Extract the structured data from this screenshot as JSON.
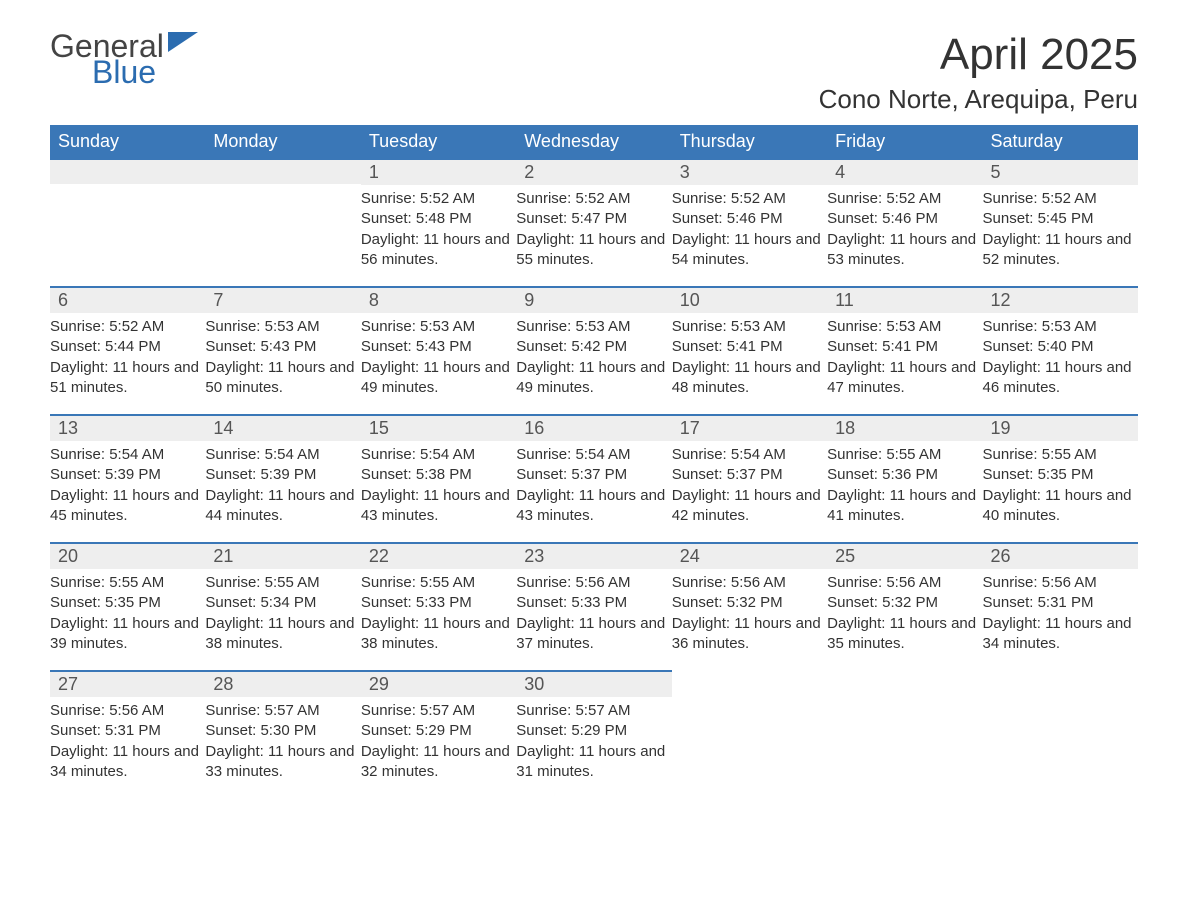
{
  "logo": {
    "text_general": "General",
    "text_blue": "Blue",
    "accent_color": "#2b6cb0"
  },
  "title": "April 2025",
  "location": "Cono Norte, Arequipa, Peru",
  "colors": {
    "header_bg": "#3a77b7",
    "header_text": "#ffffff",
    "daynum_bg": "#eeeeee",
    "daynum_border": "#3a77b7",
    "body_text": "#333333",
    "page_bg": "#ffffff"
  },
  "weekdays": [
    "Sunday",
    "Monday",
    "Tuesday",
    "Wednesday",
    "Thursday",
    "Friday",
    "Saturday"
  ],
  "weeks": [
    [
      null,
      null,
      {
        "n": "1",
        "sunrise": "5:52 AM",
        "sunset": "5:48 PM",
        "daylight": "11 hours and 56 minutes."
      },
      {
        "n": "2",
        "sunrise": "5:52 AM",
        "sunset": "5:47 PM",
        "daylight": "11 hours and 55 minutes."
      },
      {
        "n": "3",
        "sunrise": "5:52 AM",
        "sunset": "5:46 PM",
        "daylight": "11 hours and 54 minutes."
      },
      {
        "n": "4",
        "sunrise": "5:52 AM",
        "sunset": "5:46 PM",
        "daylight": "11 hours and 53 minutes."
      },
      {
        "n": "5",
        "sunrise": "5:52 AM",
        "sunset": "5:45 PM",
        "daylight": "11 hours and 52 minutes."
      }
    ],
    [
      {
        "n": "6",
        "sunrise": "5:52 AM",
        "sunset": "5:44 PM",
        "daylight": "11 hours and 51 minutes."
      },
      {
        "n": "7",
        "sunrise": "5:53 AM",
        "sunset": "5:43 PM",
        "daylight": "11 hours and 50 minutes."
      },
      {
        "n": "8",
        "sunrise": "5:53 AM",
        "sunset": "5:43 PM",
        "daylight": "11 hours and 49 minutes."
      },
      {
        "n": "9",
        "sunrise": "5:53 AM",
        "sunset": "5:42 PM",
        "daylight": "11 hours and 49 minutes."
      },
      {
        "n": "10",
        "sunrise": "5:53 AM",
        "sunset": "5:41 PM",
        "daylight": "11 hours and 48 minutes."
      },
      {
        "n": "11",
        "sunrise": "5:53 AM",
        "sunset": "5:41 PM",
        "daylight": "11 hours and 47 minutes."
      },
      {
        "n": "12",
        "sunrise": "5:53 AM",
        "sunset": "5:40 PM",
        "daylight": "11 hours and 46 minutes."
      }
    ],
    [
      {
        "n": "13",
        "sunrise": "5:54 AM",
        "sunset": "5:39 PM",
        "daylight": "11 hours and 45 minutes."
      },
      {
        "n": "14",
        "sunrise": "5:54 AM",
        "sunset": "5:39 PM",
        "daylight": "11 hours and 44 minutes."
      },
      {
        "n": "15",
        "sunrise": "5:54 AM",
        "sunset": "5:38 PM",
        "daylight": "11 hours and 43 minutes."
      },
      {
        "n": "16",
        "sunrise": "5:54 AM",
        "sunset": "5:37 PM",
        "daylight": "11 hours and 43 minutes."
      },
      {
        "n": "17",
        "sunrise": "5:54 AM",
        "sunset": "5:37 PM",
        "daylight": "11 hours and 42 minutes."
      },
      {
        "n": "18",
        "sunrise": "5:55 AM",
        "sunset": "5:36 PM",
        "daylight": "11 hours and 41 minutes."
      },
      {
        "n": "19",
        "sunrise": "5:55 AM",
        "sunset": "5:35 PM",
        "daylight": "11 hours and 40 minutes."
      }
    ],
    [
      {
        "n": "20",
        "sunrise": "5:55 AM",
        "sunset": "5:35 PM",
        "daylight": "11 hours and 39 minutes."
      },
      {
        "n": "21",
        "sunrise": "5:55 AM",
        "sunset": "5:34 PM",
        "daylight": "11 hours and 38 minutes."
      },
      {
        "n": "22",
        "sunrise": "5:55 AM",
        "sunset": "5:33 PM",
        "daylight": "11 hours and 38 minutes."
      },
      {
        "n": "23",
        "sunrise": "5:56 AM",
        "sunset": "5:33 PM",
        "daylight": "11 hours and 37 minutes."
      },
      {
        "n": "24",
        "sunrise": "5:56 AM",
        "sunset": "5:32 PM",
        "daylight": "11 hours and 36 minutes."
      },
      {
        "n": "25",
        "sunrise": "5:56 AM",
        "sunset": "5:32 PM",
        "daylight": "11 hours and 35 minutes."
      },
      {
        "n": "26",
        "sunrise": "5:56 AM",
        "sunset": "5:31 PM",
        "daylight": "11 hours and 34 minutes."
      }
    ],
    [
      {
        "n": "27",
        "sunrise": "5:56 AM",
        "sunset": "5:31 PM",
        "daylight": "11 hours and 34 minutes."
      },
      {
        "n": "28",
        "sunrise": "5:57 AM",
        "sunset": "5:30 PM",
        "daylight": "11 hours and 33 minutes."
      },
      {
        "n": "29",
        "sunrise": "5:57 AM",
        "sunset": "5:29 PM",
        "daylight": "11 hours and 32 minutes."
      },
      {
        "n": "30",
        "sunrise": "5:57 AM",
        "sunset": "5:29 PM",
        "daylight": "11 hours and 31 minutes."
      },
      null,
      null,
      null
    ]
  ],
  "labels": {
    "sunrise": "Sunrise:",
    "sunset": "Sunset:",
    "daylight": "Daylight:"
  }
}
